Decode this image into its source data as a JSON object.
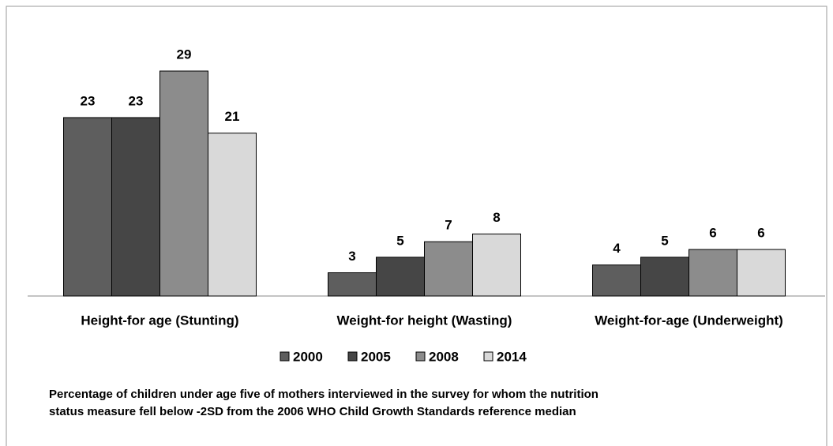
{
  "chart_data": {
    "type": "bar",
    "categories": [
      "Height-for age (Stunting)",
      "Weight-for height (Wasting)",
      "Weight-for-age (Underweight)"
    ],
    "series": [
      {
        "name": "2000",
        "color": "#5e5e5e",
        "values": [
          23,
          3,
          4
        ]
      },
      {
        "name": "2005",
        "color": "#464646",
        "values": [
          23,
          5,
          5
        ]
      },
      {
        "name": "2008",
        "color": "#8c8c8c",
        "values": [
          29,
          7,
          6
        ]
      },
      {
        "name": "2014",
        "color": "#d9d9d9",
        "values": [
          21,
          8,
          6
        ]
      }
    ],
    "caption": [
      "Percentage of children under age five of mothers interviewed in the survey for whom the nutrition",
      "status measure fell below -2SD from the 2006 WHO Child Growth Standards reference median"
    ]
  }
}
